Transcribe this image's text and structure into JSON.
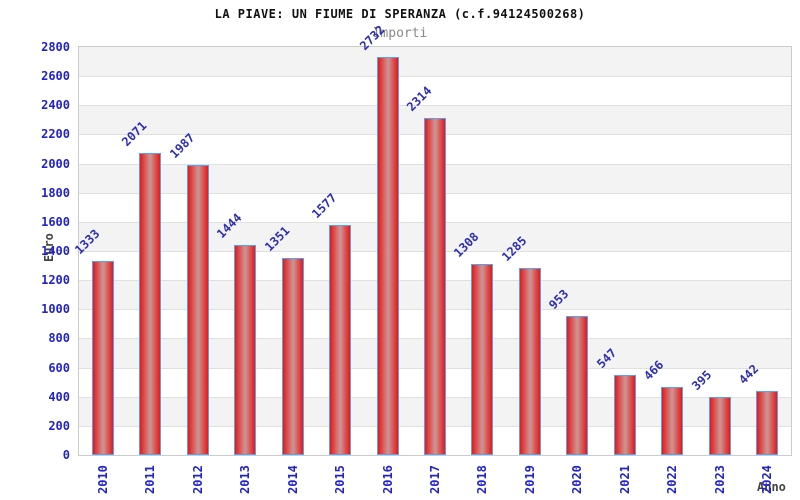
{
  "chart_data": {
    "type": "bar",
    "title": "LA PIAVE: UN FIUME DI SPERANZA (c.f.94124500268)",
    "subtitle": "Importi",
    "xlabel": "Anno",
    "ylabel": "Euro",
    "categories": [
      "2010",
      "2011",
      "2012",
      "2013",
      "2014",
      "2015",
      "2016",
      "2017",
      "2018",
      "2019",
      "2020",
      "2021",
      "2022",
      "2023",
      "2024"
    ],
    "values": [
      1333,
      2071,
      1987,
      1444,
      1351,
      1577,
      2732,
      2314,
      1308,
      1285,
      953,
      547,
      466,
      395,
      442
    ],
    "ylim": [
      0,
      2800
    ],
    "y_ticks": [
      0,
      200,
      400,
      600,
      800,
      1000,
      1200,
      1400,
      1600,
      1800,
      2000,
      2200,
      2400,
      2600,
      2800
    ],
    "grid": "horizontal-bands",
    "legend": "none",
    "bar_value_labels_rotated_deg": 45,
    "x_labels_rotated_deg": 90,
    "colors": {
      "tick_text": "#2222cc",
      "value_text": "#2d2db4",
      "title_text": "#111111",
      "subtitle_text": "#888888",
      "axis_label_text": "#444444",
      "bar_border": "#5a9ff0",
      "bar_edge_fill": "#e01b1b",
      "bar_center_fill": "#cd9090",
      "band_gray": "#f3f3f3",
      "band_white": "#ffffff",
      "gridline": "#e0e0e0",
      "frame_border": "#cccccc",
      "background": "#ffffff"
    }
  }
}
